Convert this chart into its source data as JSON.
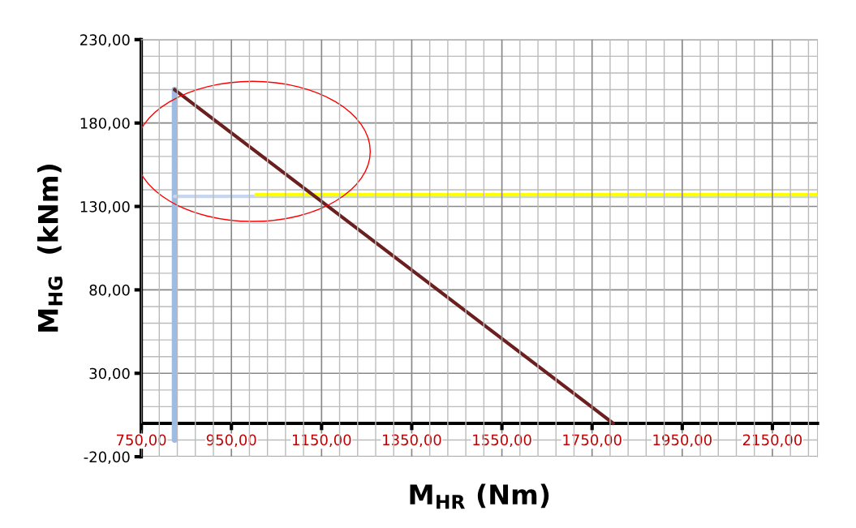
{
  "chart_data": {
    "type": "line",
    "xlabel": "M$_{HR}$ (Nm)",
    "ylabel": "M$_{HG}$  (kNm)",
    "xlim": [
      750,
      2250
    ],
    "ylim": [
      -20,
      230
    ],
    "xticks": [
      {
        "value": 750,
        "label": "750,00"
      },
      {
        "value": 950,
        "label": "950,00"
      },
      {
        "value": 1150,
        "label": "1150,00"
      },
      {
        "value": 1350,
        "label": "1350,00"
      },
      {
        "value": 1550,
        "label": "1550,00"
      },
      {
        "value": 1750,
        "label": "1750,00"
      },
      {
        "value": 1950,
        "label": "1950,00"
      },
      {
        "value": 2150,
        "label": "2150,00"
      }
    ],
    "yticks": [
      {
        "value": -20,
        "label": "-20,00"
      },
      {
        "value": 30,
        "label": "30,00"
      },
      {
        "value": 80,
        "label": "80,00"
      },
      {
        "value": 130,
        "label": "130,00"
      },
      {
        "value": 180,
        "label": "180,00"
      },
      {
        "value": 230,
        "label": "230,00"
      }
    ],
    "grid": true,
    "marker": "none",
    "line_style": "solid",
    "series": [
      {
        "color": "#9dbbe3",
        "x": [
          824,
          824
        ],
        "values": [
          -10,
          200
        ]
      },
      {
        "color": "#c5d6ee",
        "x": [
          824,
          2250
        ],
        "values": [
          136,
          136
        ]
      },
      {
        "color": "#ffff00",
        "x": [
          1004,
          2250
        ],
        "values": [
          137,
          137
        ]
      },
      {
        "color": "#6b1f1f",
        "x": [
          824,
          1797
        ],
        "values": [
          200,
          0
        ]
      }
    ]
  }
}
